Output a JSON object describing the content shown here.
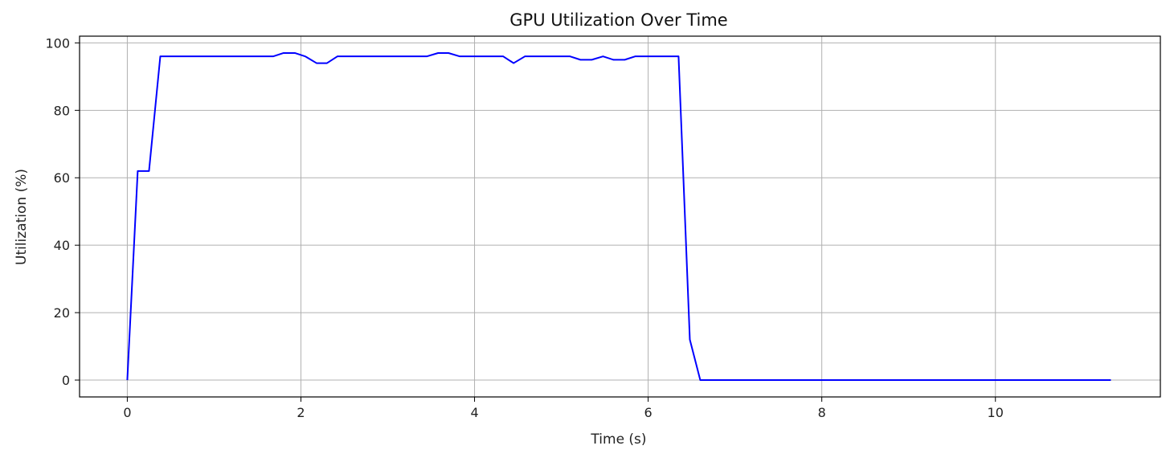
{
  "chart_data": {
    "type": "line",
    "title": "GPU Utilization Over Time",
    "xlabel": "Time (s)",
    "ylabel": "Utilization (%)",
    "xlim": [
      -0.55,
      11.9
    ],
    "ylim": [
      -5,
      102
    ],
    "x_ticks": [
      0,
      2,
      4,
      6,
      8,
      10
    ],
    "y_ticks": [
      0,
      20,
      40,
      60,
      80,
      100
    ],
    "grid": true,
    "line_color": "#0000ff",
    "grid_color": "#b0b0b0",
    "series": [
      {
        "x": [
          0,
          0.12,
          0.25,
          0.38,
          0.5,
          0.65,
          0.8,
          1.0,
          1.2,
          1.4,
          1.55,
          1.68,
          1.8,
          1.93,
          2.05,
          2.18,
          2.3,
          2.42,
          2.55,
          2.7,
          2.9,
          3.1,
          3.3,
          3.45,
          3.58,
          3.7,
          3.83,
          3.95,
          4.1,
          4.2,
          4.33,
          4.45,
          4.58,
          4.7,
          4.85,
          5.0,
          5.1,
          5.22,
          5.35,
          5.48,
          5.6,
          5.73,
          5.85,
          6.0,
          6.2,
          6.35,
          6.48,
          6.6,
          6.8,
          7.0,
          8.0,
          9.0,
          10.0,
          11.0,
          11.33
        ],
        "y": [
          0,
          62,
          62,
          96,
          96,
          96,
          96,
          96,
          96,
          96,
          96,
          96,
          97,
          97,
          96,
          94,
          94,
          96,
          96,
          96,
          96,
          96,
          96,
          96,
          97,
          97,
          96,
          96,
          96,
          96,
          96,
          94,
          96,
          96,
          96,
          96,
          96,
          95,
          95,
          96,
          95,
          95,
          96,
          96,
          96,
          96,
          12,
          0,
          0,
          0,
          0,
          0,
          0,
          0,
          0
        ]
      }
    ]
  }
}
